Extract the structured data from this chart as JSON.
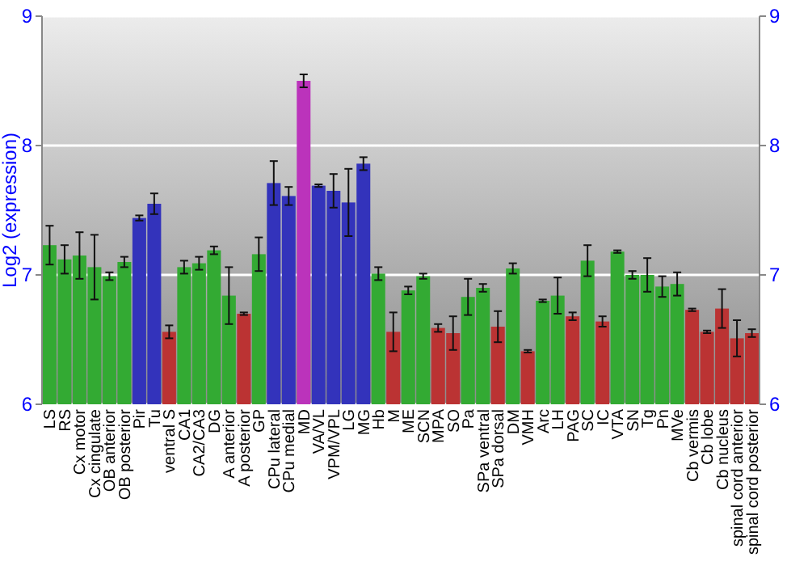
{
  "chart_data": {
    "type": "bar",
    "ylabel": "Log2 (expression)",
    "categories": [
      "LS",
      "RS",
      "Cx motor",
      "Cx cingulate",
      "OB anterior",
      "OB posterior",
      "Pir",
      "Tu",
      "ventral S",
      "CA1",
      "CA2/CA3",
      "DG",
      "A anterior",
      "A posterior",
      "GP",
      "CPu lateral",
      "CPu medial",
      "MD",
      "VA/VL",
      "VPM/VPL",
      "LG",
      "MG",
      "Hb",
      "M",
      "ME",
      "SCN",
      "MPA",
      "SO",
      "Pa",
      "SPa ventral",
      "SPa dorsal",
      "DM",
      "VMH",
      "Arc",
      "LH",
      "PAG",
      "SC",
      "IC",
      "VTA",
      "SN",
      "Tg",
      "Pn",
      "MVe",
      "Cb vermis",
      "Cb lobe",
      "Cb nucleus",
      "spinal cord anterior",
      "spinal cord posterior"
    ],
    "values": [
      7.23,
      7.12,
      7.15,
      7.06,
      6.99,
      7.1,
      7.44,
      7.55,
      6.56,
      7.06,
      7.09,
      7.19,
      6.84,
      6.7,
      7.16,
      7.71,
      7.61,
      8.5,
      7.69,
      7.65,
      7.56,
      7.86,
      7.01,
      6.56,
      6.88,
      6.99,
      6.59,
      6.55,
      6.83,
      6.9,
      6.6,
      7.05,
      6.41,
      6.8,
      6.84,
      6.68,
      7.11,
      6.64,
      7.18,
      7.0,
      7.0,
      6.91,
      6.93,
      6.73,
      6.56,
      6.74,
      6.51,
      6.55
    ],
    "errors": [
      0.15,
      0.11,
      0.18,
      0.25,
      0.03,
      0.04,
      0.02,
      0.08,
      0.05,
      0.05,
      0.05,
      0.03,
      0.22,
      0.01,
      0.13,
      0.17,
      0.07,
      0.05,
      0.01,
      0.13,
      0.26,
      0.05,
      0.05,
      0.15,
      0.03,
      0.02,
      0.03,
      0.13,
      0.14,
      0.03,
      0.12,
      0.04,
      0.01,
      0.01,
      0.14,
      0.03,
      0.12,
      0.04,
      0.01,
      0.03,
      0.13,
      0.08,
      0.09,
      0.01,
      0.01,
      0.15,
      0.14,
      0.03
    ],
    "colors": [
      "#33aa33",
      "#33aa33",
      "#33aa33",
      "#33aa33",
      "#33aa33",
      "#33aa33",
      "#3333bb",
      "#3333bb",
      "#bb3333",
      "#33aa33",
      "#33aa33",
      "#33aa33",
      "#33aa33",
      "#bb3333",
      "#33aa33",
      "#3333bb",
      "#3333bb",
      "#bb33bb",
      "#3333bb",
      "#3333bb",
      "#3333bb",
      "#3333bb",
      "#33aa33",
      "#bb3333",
      "#33aa33",
      "#33aa33",
      "#bb3333",
      "#bb3333",
      "#33aa33",
      "#33aa33",
      "#bb3333",
      "#33aa33",
      "#bb3333",
      "#33aa33",
      "#33aa33",
      "#bb3333",
      "#33aa33",
      "#bb3333",
      "#33aa33",
      "#33aa33",
      "#33aa33",
      "#33aa33",
      "#33aa33",
      "#bb3333",
      "#bb3333",
      "#bb3333",
      "#bb3333",
      "#bb3333"
    ],
    "ylim": [
      6,
      9
    ],
    "yticks": [
      6,
      7,
      8,
      9
    ],
    "y2lim": [
      6,
      9
    ],
    "y2ticks": [
      6,
      7,
      8,
      9
    ],
    "grid": "y"
  }
}
